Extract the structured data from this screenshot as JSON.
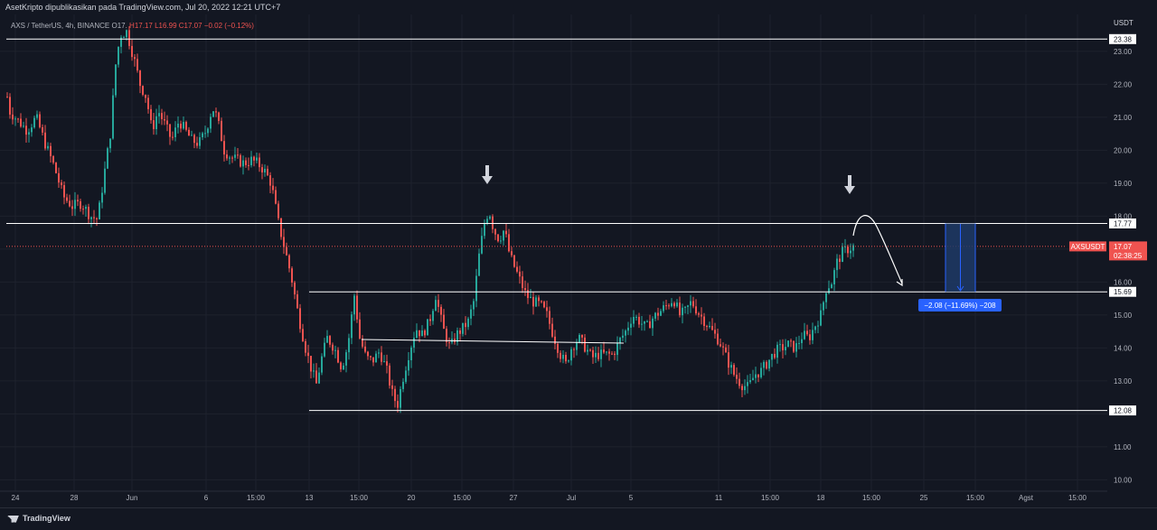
{
  "header": {
    "publisher": "AsetKripto dipublikasikan pada TradingView.com, Jul 20, 2022 12:21 UTC+7"
  },
  "symbol_info": {
    "pair": "AXS / TetherUS, 4h, BINANCE",
    "ohlc_prefix": "O17.",
    "high": "H17.17",
    "low": "L16.99",
    "close": "C17.07",
    "change": "−0.02 (−0.12%)"
  },
  "price_axis": {
    "currency": "USDT",
    "ticks": [
      "23.00",
      "22.00",
      "21.00",
      "20.00",
      "19.00",
      "18.00",
      "16.00",
      "15.00",
      "14.00",
      "13.00",
      "11.00",
      "10.00"
    ]
  },
  "time_axis": {
    "labels": [
      "24",
      "28",
      "Jun",
      "6",
      "15:00",
      "13",
      "15:00",
      "20",
      "15:00",
      "27",
      "Jul",
      "5",
      "11",
      "15:00",
      "18",
      "15:00",
      "25",
      "15:00",
      "Agst",
      "15:00"
    ]
  },
  "levels": {
    "l1": "23.38",
    "l2": "17.77",
    "l3": "15.69",
    "l4": "12.08"
  },
  "current_price": {
    "symbol": "AXSUSDT",
    "price": "17.07",
    "countdown": "02:38:25"
  },
  "measure": {
    "label": "−2.08 (−11.69%) −208"
  },
  "footer": {
    "brand": "TradingView"
  },
  "colors": {
    "background": "#131722",
    "up": "#26a69a",
    "down": "#ef5350",
    "level": "#ffffff",
    "measure": "#2962ff"
  },
  "chart_data": {
    "type": "candlestick",
    "pair": "AXS / TetherUS",
    "interval": "4h",
    "exchange": "BINANCE",
    "ylim": [
      9.6,
      23.9
    ],
    "y_unit": "USDT",
    "grid": true,
    "horizontal_levels": [
      23.38,
      17.77,
      15.69,
      12.08
    ],
    "current_price": 17.07,
    "measurement": {
      "from": 17.77,
      "to": 15.69,
      "change": -2.08,
      "change_pct": -11.69
    },
    "path": [
      [
        0,
        23.3
      ],
      [
        10,
        21.2
      ],
      [
        20,
        20.9
      ],
      [
        30,
        20.6
      ],
      [
        40,
        21.0
      ],
      [
        50,
        20.2
      ],
      [
        60,
        19.5
      ],
      [
        70,
        18.6
      ],
      [
        80,
        18.3
      ],
      [
        90,
        18.4
      ],
      [
        100,
        18.0
      ],
      [
        108,
        17.9
      ],
      [
        115,
        19.2
      ],
      [
        122,
        20.5
      ],
      [
        128,
        22.6
      ],
      [
        133,
        23.5
      ],
      [
        140,
        23.6
      ],
      [
        148,
        22.8
      ],
      [
        155,
        22.0
      ],
      [
        162,
        21.6
      ],
      [
        168,
        20.6
      ],
      [
        175,
        21.2
      ],
      [
        182,
        20.8
      ],
      [
        190,
        20.3
      ],
      [
        198,
        20.9
      ],
      [
        205,
        20.6
      ],
      [
        212,
        20.3
      ],
      [
        220,
        20.2
      ],
      [
        228,
        20.6
      ],
      [
        235,
        21.3
      ],
      [
        240,
        21.0
      ],
      [
        248,
        20.0
      ],
      [
        255,
        19.8
      ],
      [
        262,
        19.7
      ],
      [
        270,
        19.6
      ],
      [
        278,
        19.7
      ],
      [
        285,
        19.6
      ],
      [
        292,
        19.4
      ],
      [
        300,
        19.0
      ],
      [
        308,
        17.8
      ],
      [
        315,
        17.0
      ],
      [
        322,
        16.2
      ],
      [
        330,
        15.0
      ],
      [
        338,
        14.0
      ],
      [
        345,
        13.3
      ],
      [
        350,
        12.9
      ],
      [
        355,
        13.6
      ],
      [
        362,
        14.3
      ],
      [
        370,
        14.0
      ],
      [
        378,
        13.4
      ],
      [
        385,
        14.1
      ],
      [
        392,
        15.6
      ],
      [
        398,
        14.3
      ],
      [
        405,
        13.7
      ],
      [
        412,
        13.6
      ],
      [
        420,
        13.9
      ],
      [
        428,
        13.3
      ],
      [
        435,
        12.5
      ],
      [
        440,
        12.3
      ],
      [
        445,
        13.0
      ],
      [
        452,
        13.8
      ],
      [
        460,
        14.6
      ],
      [
        467,
        14.4
      ],
      [
        475,
        14.8
      ],
      [
        482,
        15.6
      ],
      [
        490,
        14.6
      ],
      [
        498,
        14.0
      ],
      [
        505,
        14.4
      ],
      [
        512,
        14.6
      ],
      [
        518,
        14.8
      ],
      [
        524,
        15.4
      ],
      [
        530,
        16.8
      ],
      [
        536,
        17.8
      ],
      [
        541,
        18.2
      ],
      [
        546,
        17.6
      ],
      [
        552,
        17.3
      ],
      [
        558,
        17.6
      ],
      [
        564,
        16.8
      ],
      [
        570,
        16.4
      ],
      [
        576,
        16.0
      ],
      [
        582,
        15.6
      ],
      [
        590,
        15.4
      ],
      [
        598,
        15.3
      ],
      [
        605,
        15.0
      ],
      [
        612,
        14.4
      ],
      [
        620,
        13.8
      ],
      [
        626,
        13.5
      ],
      [
        632,
        14.0
      ],
      [
        640,
        14.3
      ],
      [
        648,
        14.0
      ],
      [
        655,
        13.7
      ],
      [
        662,
        13.8
      ],
      [
        670,
        13.8
      ],
      [
        678,
        13.8
      ],
      [
        685,
        14.2
      ],
      [
        692,
        14.5
      ],
      [
        700,
        15.0
      ],
      [
        708,
        14.8
      ],
      [
        715,
        14.6
      ],
      [
        722,
        14.9
      ],
      [
        730,
        15.1
      ],
      [
        738,
        15.3
      ],
      [
        745,
        15.5
      ],
      [
        752,
        15.0
      ],
      [
        758,
        15.1
      ],
      [
        765,
        15.4
      ],
      [
        772,
        15.1
      ],
      [
        780,
        14.8
      ],
      [
        788,
        14.5
      ],
      [
        796,
        14.2
      ],
      [
        805,
        13.6
      ],
      [
        812,
        13.2
      ],
      [
        820,
        12.9
      ],
      [
        828,
        12.8
      ],
      [
        835,
        13.2
      ],
      [
        842,
        13.3
      ],
      [
        850,
        13.6
      ],
      [
        858,
        13.9
      ],
      [
        865,
        14.0
      ],
      [
        872,
        14.1
      ],
      [
        880,
        14.0
      ],
      [
        888,
        14.4
      ],
      [
        895,
        14.3
      ],
      [
        902,
        14.7
      ],
      [
        908,
        15.0
      ],
      [
        914,
        15.8
      ],
      [
        920,
        16.0
      ],
      [
        926,
        16.6
      ],
      [
        932,
        16.9
      ],
      [
        938,
        17.0
      ],
      [
        944,
        17.07
      ]
    ]
  }
}
